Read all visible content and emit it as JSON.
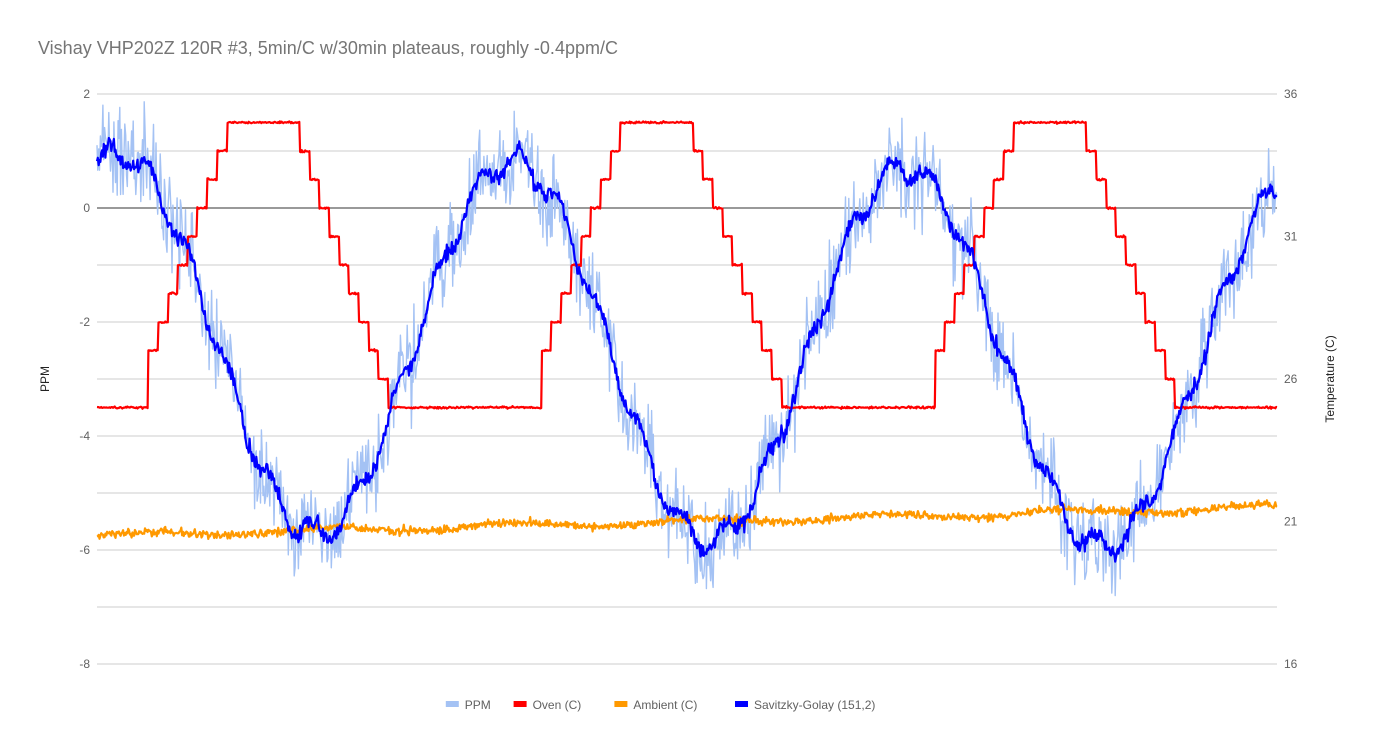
{
  "chart_data": {
    "type": "line",
    "title": "Vishay VHP202Z 120R #3, 5min/C w/30min plateaus, roughly -0.4ppm/C",
    "left_axis": {
      "label": "PPM",
      "min": -8,
      "max": 2,
      "ticks": [
        "2",
        "0",
        "-2",
        "-4",
        "-6",
        "-8"
      ],
      "tick_values": [
        2,
        0,
        -2,
        -4,
        -6,
        -8
      ]
    },
    "right_axis": {
      "label": "Temperature (C)",
      "min": 16,
      "max": 36,
      "ticks": [
        "36",
        "31",
        "26",
        "21",
        "16"
      ],
      "tick_values": [
        36,
        31,
        26,
        21,
        16
      ]
    },
    "x": {
      "min": 0,
      "max": 1,
      "labels_shown": false
    },
    "grid": true,
    "legend_position": "bottom",
    "cycles": 3,
    "series": [
      {
        "name": "PPM",
        "axis": "left",
        "color": "#a4c2f4",
        "description_values": {
          "cycle_max_approx": 1.3,
          "cycle_min_approx": -6.0,
          "noise_amplitude_approx": 0.9
        }
      },
      {
        "name": "Oven (C)",
        "axis": "right",
        "color": "#ff0000",
        "steps_up": [
          25,
          27,
          28,
          29,
          30,
          31,
          32,
          33,
          34,
          35
        ],
        "steps_down": [
          35,
          34,
          33,
          32,
          31,
          30,
          29,
          28,
          27,
          26,
          25
        ],
        "low_value": 25,
        "high_value": 35
      },
      {
        "name": "Ambient (C)",
        "axis": "right",
        "color": "#ff9900",
        "start": 20.5,
        "end": 21.5
      },
      {
        "name": "Savitzky-Golay (151,2)",
        "axis": "left",
        "color": "#0000ff"
      }
    ]
  }
}
